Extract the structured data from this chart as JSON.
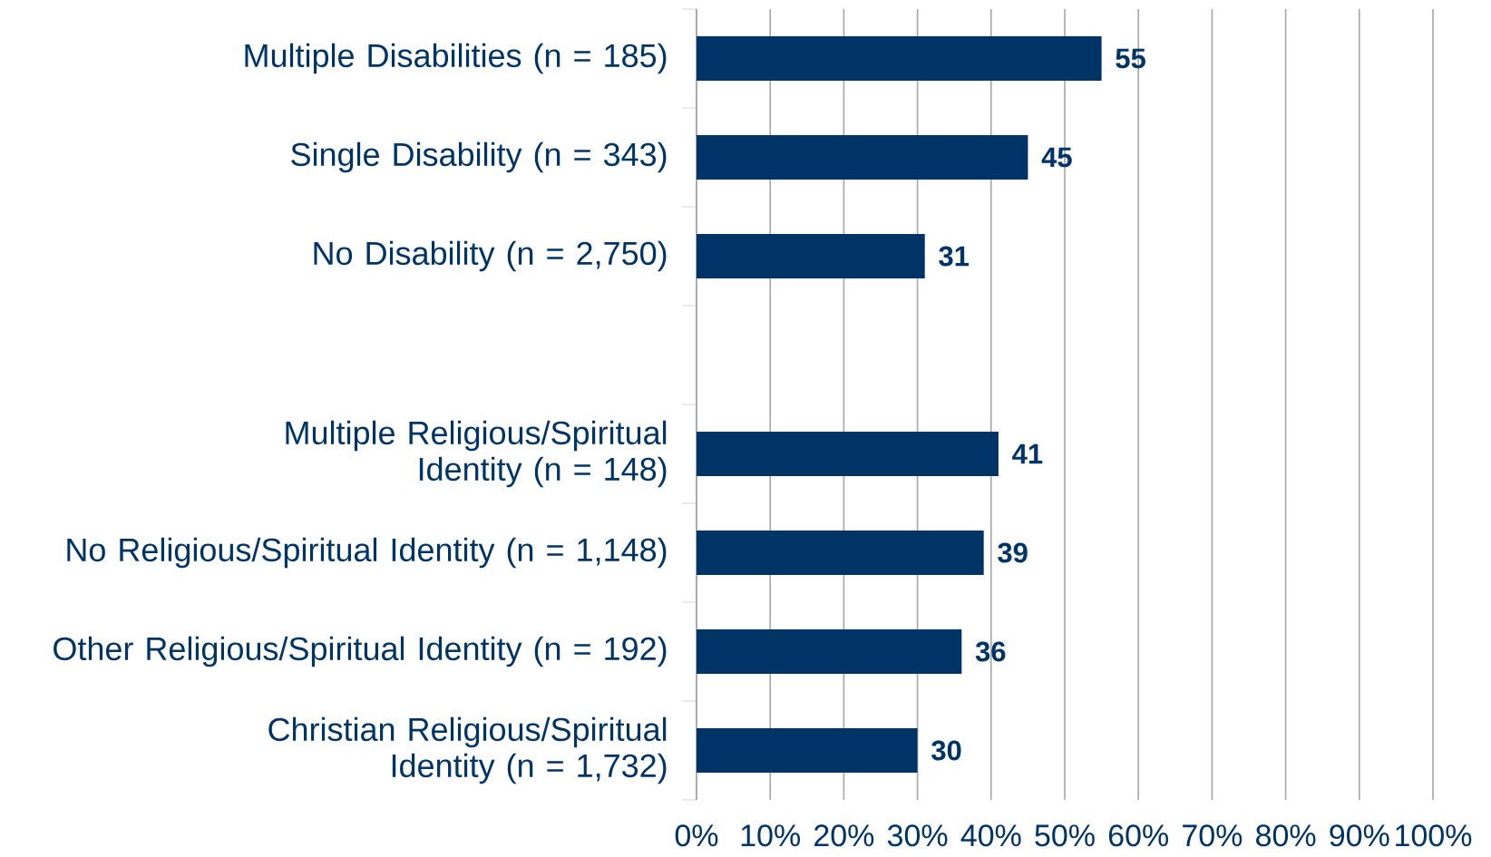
{
  "chart_data": {
    "type": "bar",
    "orientation": "horizontal",
    "categories": [
      "Multiple Disabilities (n = 185)",
      "Single Disability (n = 343)",
      "No Disability (n = 2,750)",
      null,
      "Multiple Religious/Spiritual Identity (n = 148)",
      "No Religious/Spiritual Identity (n = 1,148)",
      "Other Religious/Spiritual Identity (n = 192)",
      "Christian Religious/Spiritual Identity (n = 1,732)"
    ],
    "values": [
      55,
      45,
      31,
      null,
      41,
      39,
      36,
      30
    ],
    "color": "#003366",
    "data_labels": true,
    "grid": "x",
    "xlim": [
      0,
      100
    ],
    "xticks": [
      {
        "value": 0,
        "label": "0%"
      },
      {
        "value": 10,
        "label": "10%"
      },
      {
        "value": 20,
        "label": "20%"
      },
      {
        "value": 30,
        "label": "30%"
      },
      {
        "value": 40,
        "label": "40%"
      },
      {
        "value": 50,
        "label": "50%"
      },
      {
        "value": 60,
        "label": "60%"
      },
      {
        "value": 70,
        "label": "70%"
      },
      {
        "value": 80,
        "label": "80%"
      },
      {
        "value": 90,
        "label": "90%"
      },
      {
        "value": 100,
        "label": "100%"
      }
    ]
  }
}
